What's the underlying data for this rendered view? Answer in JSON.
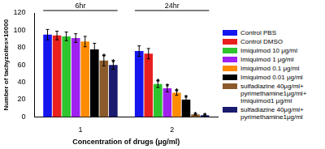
{
  "chart_data": {
    "type": "bar",
    "x_label": "Concentration of drugs (μg/ml)",
    "y_label": "Number of tachyzoites×10000",
    "categories": [
      "1",
      "2"
    ],
    "group_labels": [
      {
        "text": "6hr",
        "category": "1"
      },
      {
        "text": "24hr",
        "category": "2"
      }
    ],
    "series": [
      {
        "name": "Control PBS",
        "color": "#1515f0",
        "values": [
          95,
          76
        ],
        "errors": [
          6,
          6
        ],
        "annotations": [
          null,
          null
        ]
      },
      {
        "name": "Control DMSO",
        "color": "#e8201e",
        "values": [
          94,
          73
        ],
        "errors": [
          5,
          6
        ],
        "annotations": [
          null,
          null
        ]
      },
      {
        "name": "Imiquimod 10 μg/ml",
        "color": "#2ec52e",
        "values": [
          93,
          38
        ],
        "errors": [
          5,
          4
        ],
        "annotations": [
          null,
          "*"
        ]
      },
      {
        "name": "Imiquimod 1 μg/ml",
        "color": "#a020f0",
        "values": [
          91,
          33
        ],
        "errors": [
          5,
          4
        ],
        "annotations": [
          null,
          "*"
        ]
      },
      {
        "name": "Imiquimod 0.1 μg/ml",
        "color": "#ff8c00",
        "values": [
          87,
          28
        ],
        "errors": [
          6,
          3
        ],
        "annotations": [
          null,
          "*"
        ]
      },
      {
        "name": "Imiquimod 0.01 μg/ml",
        "color": "#000000",
        "values": [
          78,
          20
        ],
        "errors": [
          7,
          4
        ],
        "annotations": [
          null,
          "*"
        ]
      },
      {
        "name": "sulfadiazine 40μg/ml+ pyrimethamine1μg/ml+ Imiquimod1 μg/ml",
        "color": "#8b5a2b",
        "values": [
          65,
          3
        ],
        "errors": [
          6,
          1
        ],
        "annotations": [
          "*",
          "*"
        ]
      },
      {
        "name": "sulfadiazine 40μg/ml+ pyrimethamine1μg/ml",
        "color": "#1a1a6e",
        "values": [
          60,
          2
        ],
        "errors": [
          5,
          1
        ],
        "annotations": [
          "*",
          "*"
        ]
      }
    ],
    "ylim": [
      0,
      120
    ],
    "yticks": [
      0,
      20,
      40,
      60,
      80,
      100,
      120
    ],
    "grid": false,
    "legend": "right"
  }
}
